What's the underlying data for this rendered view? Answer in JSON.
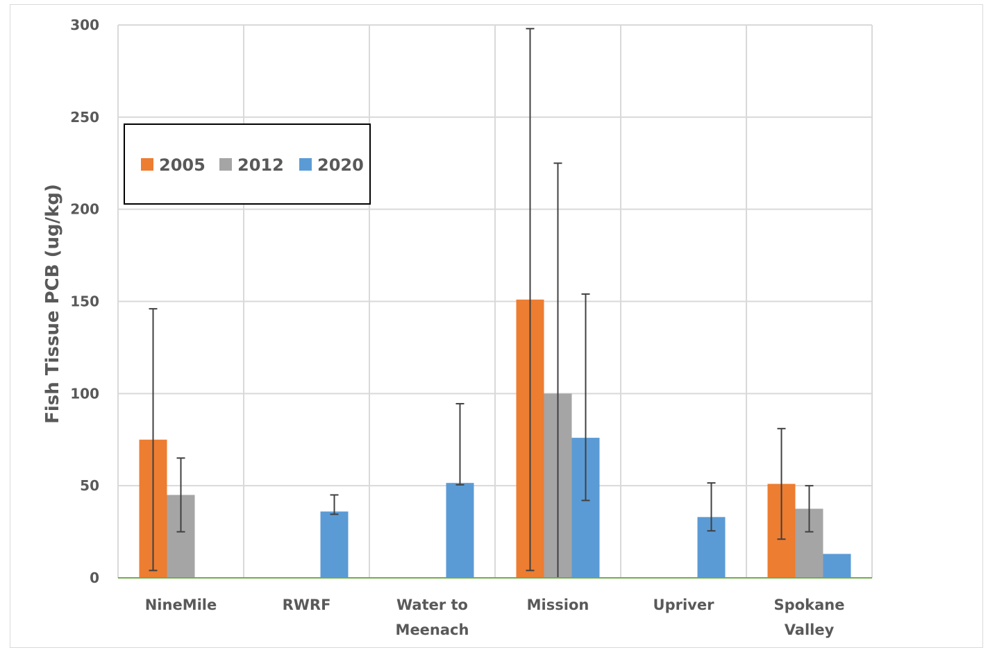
{
  "chart_data": {
    "type": "bar",
    "title": "",
    "xlabel": "",
    "ylabel": "Fish Tissue PCB (ug/kg)",
    "ylim": [
      0,
      300
    ],
    "yticks": [
      "0",
      "50",
      "100",
      "150",
      "200",
      "250",
      "300"
    ],
    "grid": true,
    "legend_position": "top-left",
    "categories": [
      [
        "NineMile"
      ],
      [
        "RWRF"
      ],
      [
        "Water to",
        "Meenach"
      ],
      [
        "Mission"
      ],
      [
        "Upriver"
      ],
      [
        "Spokane",
        "Valley"
      ]
    ],
    "series": [
      {
        "name": "2005",
        "color": "#ed7d31",
        "values": [
          75,
          null,
          null,
          151,
          null,
          51
        ],
        "error_low": [
          4,
          null,
          null,
          4,
          null,
          21
        ],
        "error_high": [
          146,
          null,
          null,
          298,
          null,
          81
        ]
      },
      {
        "name": "2012",
        "color": "#a5a5a5",
        "values": [
          45,
          null,
          null,
          100,
          null,
          37.5
        ],
        "error_low": [
          25,
          null,
          null,
          0,
          null,
          25
        ],
        "error_high": [
          65,
          null,
          null,
          225,
          null,
          50
        ]
      },
      {
        "name": "2020",
        "color": "#5b9bd5",
        "values": [
          null,
          36,
          51.5,
          76,
          33,
          13
        ],
        "error_low": [
          null,
          34.5,
          50.5,
          42,
          25.5,
          null
        ],
        "error_high": [
          null,
          45,
          94.5,
          154,
          51.5,
          null
        ]
      }
    ],
    "colors": {
      "grid": "#d9d9d9",
      "baseline": "#70ad47",
      "error_bar": "#404040",
      "text": "#595959"
    }
  }
}
